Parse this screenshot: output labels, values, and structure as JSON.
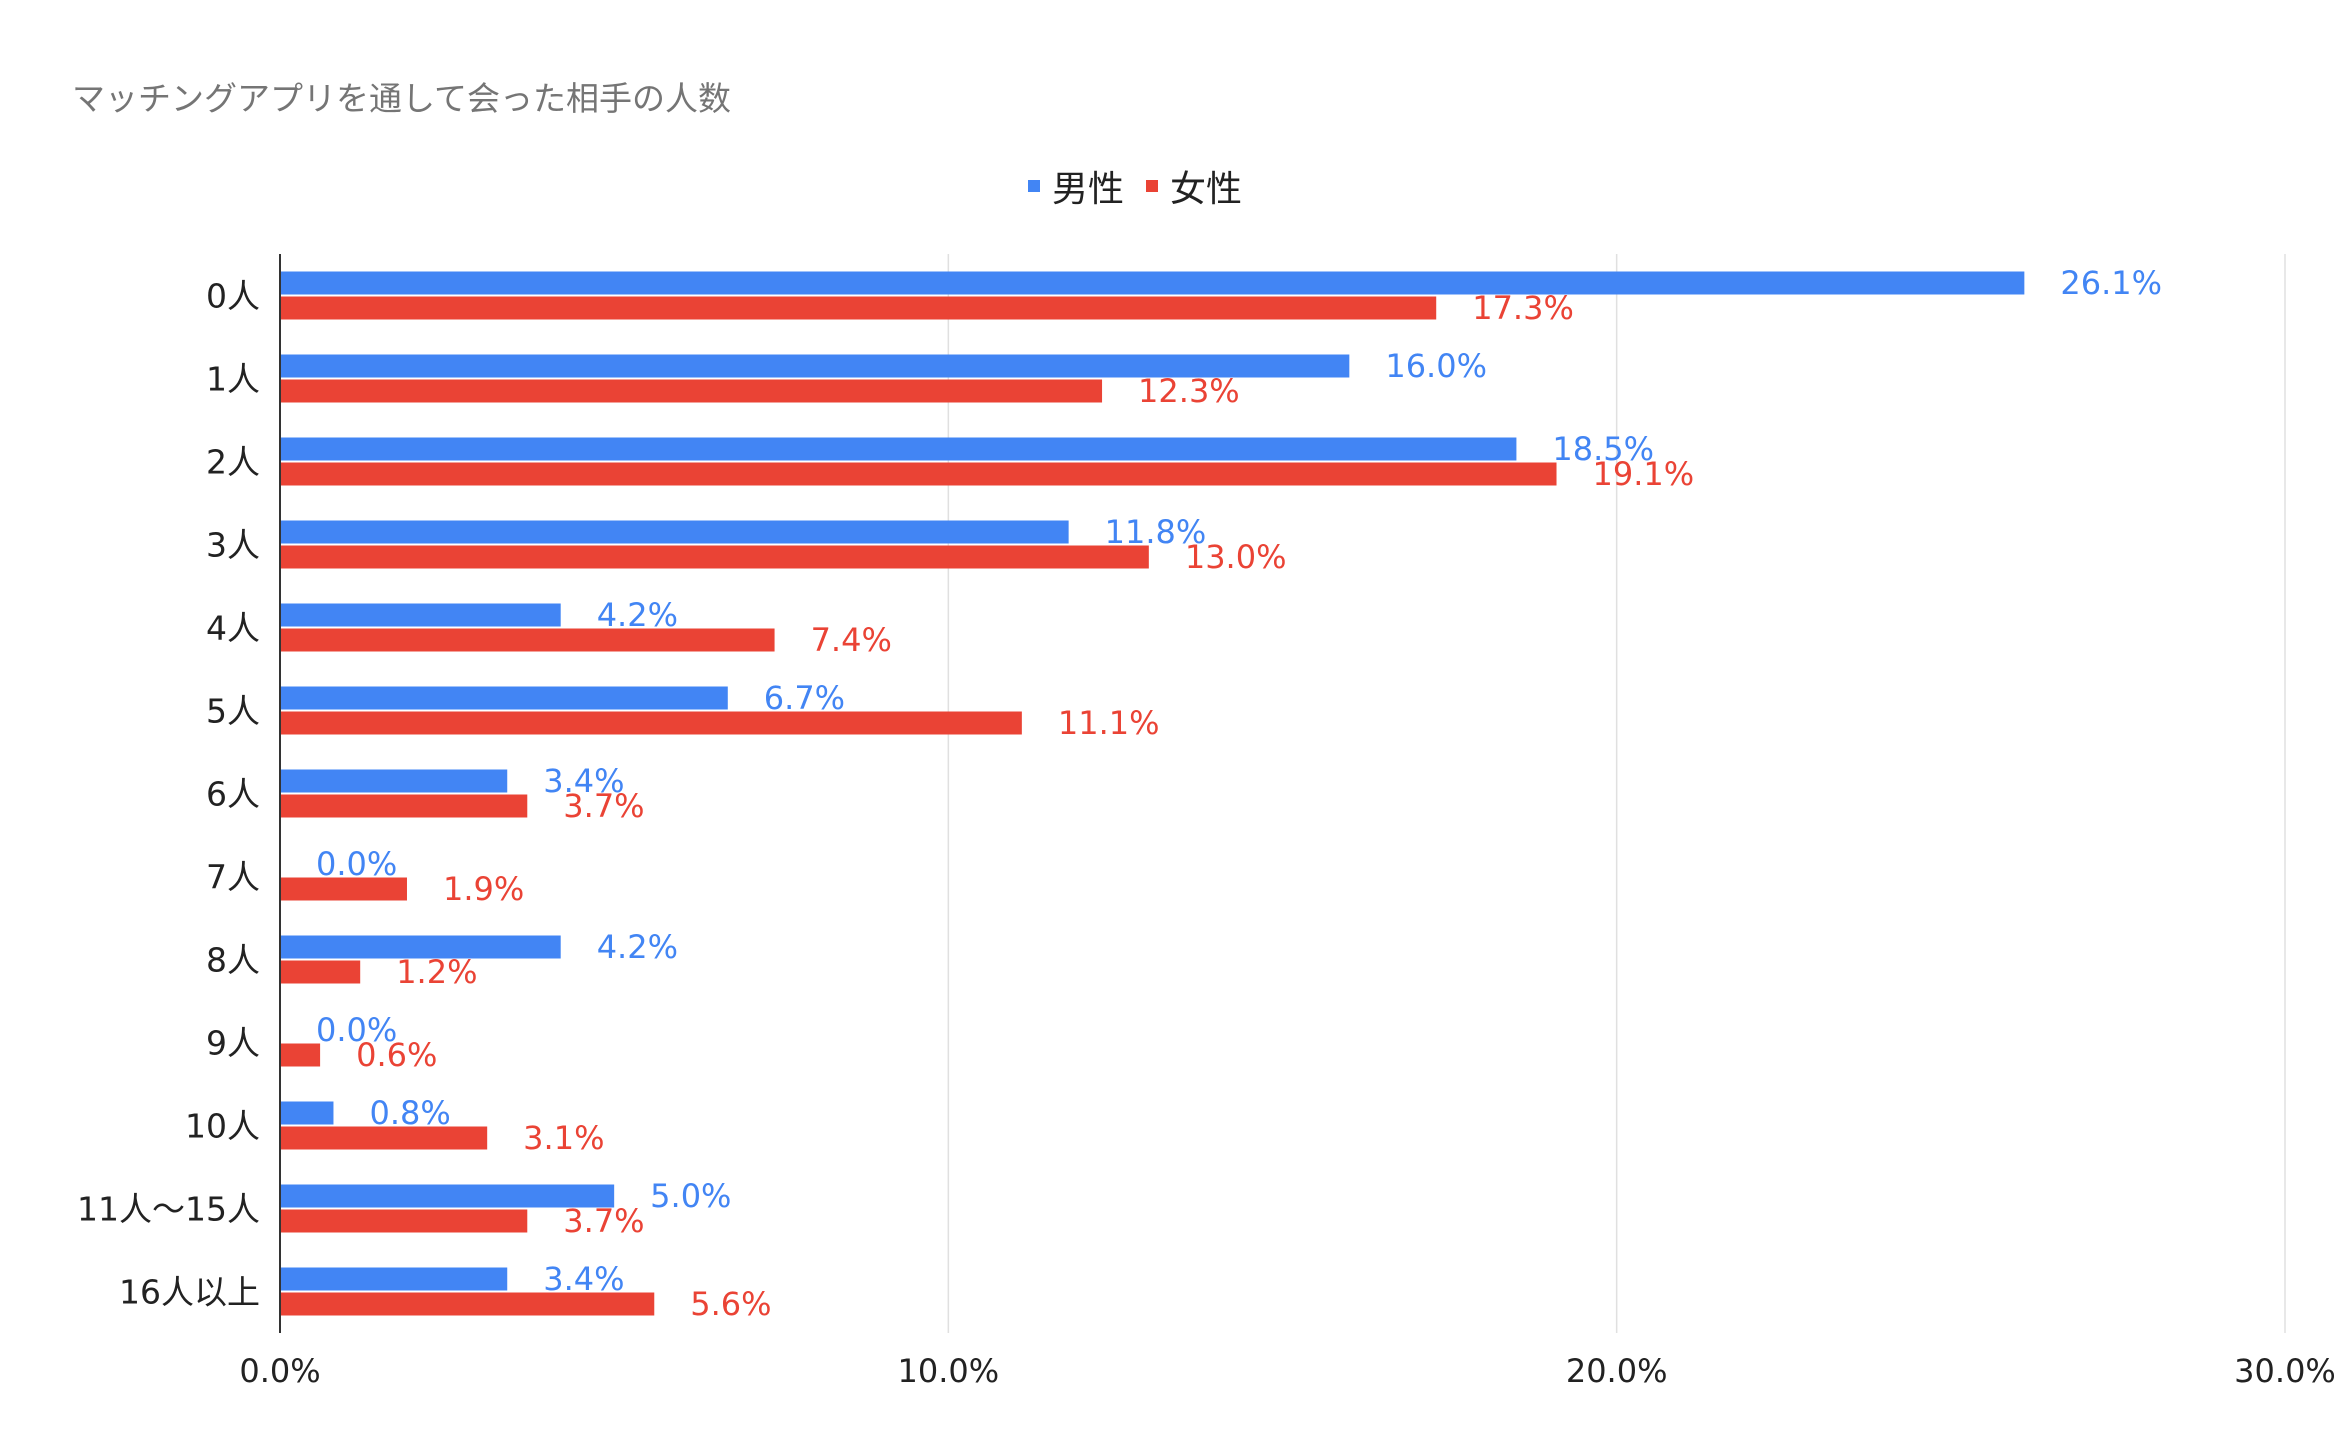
{
  "chart_data": {
    "type": "bar",
    "orientation": "horizontal",
    "title": "マッチングアプリを通して会った相手の人数",
    "categories": [
      "0人",
      "1人",
      "2人",
      "3人",
      "4人",
      "5人",
      "6人",
      "7人",
      "8人",
      "9人",
      "10人",
      "11人～15人",
      "16人以上"
    ],
    "series": [
      {
        "name": "男性",
        "color": "#4285f4",
        "values": [
          26.1,
          16.0,
          18.5,
          11.8,
          4.2,
          6.7,
          3.4,
          0.0,
          4.2,
          0.0,
          0.8,
          5.0,
          3.4
        ],
        "labels": [
          "26.1%",
          "16.0%",
          "18.5%",
          "11.8%",
          "4.2%",
          "6.7%",
          "3.4%",
          "0.0%",
          "4.2%",
          "0.0%",
          "0.8%",
          "5.0%",
          "3.4%"
        ]
      },
      {
        "name": "女性",
        "color": "#ea4335",
        "values": [
          17.3,
          12.3,
          19.1,
          13.0,
          7.4,
          11.1,
          3.7,
          1.9,
          1.2,
          0.6,
          3.1,
          3.7,
          5.6
        ],
        "labels": [
          "17.3%",
          "12.3%",
          "19.1%",
          "13.0%",
          "7.4%",
          "11.1%",
          "3.7%",
          "1.9%",
          "1.2%",
          "0.6%",
          "3.1%",
          "3.7%",
          "5.6%"
        ]
      }
    ],
    "xlim": [
      0,
      30
    ],
    "xticks": [
      0,
      10,
      20,
      30
    ],
    "xtick_labels": [
      "0.0%",
      "10.0%",
      "20.0%",
      "30.0%"
    ],
    "xlabel": "",
    "ylabel": "",
    "grid": true,
    "legend_position": "top-center"
  }
}
